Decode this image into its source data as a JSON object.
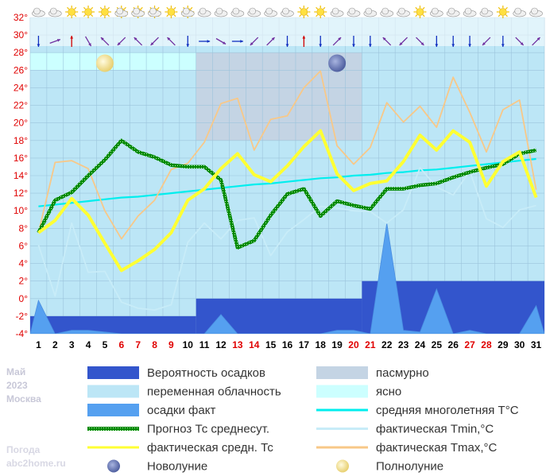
{
  "chart_data": {
    "type": "line",
    "x": [
      1,
      2,
      3,
      4,
      5,
      6,
      7,
      8,
      9,
      10,
      11,
      12,
      13,
      14,
      15,
      16,
      17,
      18,
      19,
      20,
      21,
      22,
      23,
      24,
      25,
      26,
      27,
      28,
      29,
      30,
      31
    ],
    "red_days": [
      6,
      7,
      8,
      9,
      13,
      14,
      20,
      21,
      27,
      28
    ],
    "ylim": [
      -4,
      32
    ],
    "yticks": [
      "-4°",
      "-2°",
      "0°",
      "2°",
      "4°",
      "6°",
      "8°",
      "10°",
      "12°",
      "14°",
      "16°",
      "18°",
      "20°",
      "22°",
      "24°",
      "26°",
      "28°",
      "30°",
      "32°"
    ],
    "ytick_values": [
      -4,
      -2,
      0,
      2,
      4,
      6,
      8,
      10,
      12,
      14,
      16,
      18,
      20,
      22,
      24,
      26,
      28,
      30,
      32
    ],
    "grid": true,
    "side_text": [
      "Май",
      "2023",
      "Москва"
    ],
    "watermark": [
      "Погода",
      "abc2home.ru"
    ],
    "precip_probability": {
      "name": "Вероятность осадков",
      "color": "#3355cc",
      "segments": [
        {
          "from_day": 1,
          "to_day": 10,
          "top": -2
        },
        {
          "from_day": 11,
          "to_day": 20,
          "top": 0
        },
        {
          "from_day": 21,
          "to_day": 31,
          "top": 2
        }
      ]
    },
    "cloud_bands": [
      {
        "name": "пасмурно",
        "color": "#c4d4e4",
        "from_day": 11,
        "to_day": 20,
        "bottom": 18,
        "top": 28
      },
      {
        "name": "ясно",
        "color": "#ccffff",
        "from_day": 1,
        "to_day": 10,
        "bottom": 26,
        "top": 28
      }
    ],
    "series": [
      {
        "name": "средняя многолетняя T°C",
        "color": "#00eeee",
        "values": [
          10.5,
          10.7,
          10.9,
          11.1,
          11.3,
          11.5,
          11.6,
          11.8,
          12.0,
          12.2,
          12.4,
          12.6,
          12.8,
          13.0,
          13.1,
          13.3,
          13.5,
          13.7,
          13.8,
          14.0,
          14.1,
          14.3,
          14.4,
          14.6,
          14.7,
          14.9,
          15.1,
          15.3,
          15.5,
          15.7,
          15.9
        ]
      },
      {
        "name": "фактическая Tmin,°C",
        "color": "#c8ecf8",
        "values": [
          6.1,
          0.3,
          8.6,
          3.0,
          3.1,
          -0.4,
          -1.1,
          -1.3,
          -0.7,
          6.4,
          8.6,
          6.8,
          8.9,
          9.2,
          4.9,
          7.6,
          9.0,
          10.5,
          10.3,
          10.0,
          9.9,
          8.6,
          10.1,
          14.9,
          12.7,
          11.8,
          14.5,
          9.1,
          8.1,
          10.1,
          10.6
        ]
      },
      {
        "name": "фактическая Tmax,°C",
        "color": "#f8c888",
        "values": [
          7.5,
          15.5,
          15.7,
          14.8,
          10.0,
          6.8,
          9.4,
          11.2,
          14.7,
          15.4,
          17.8,
          22.2,
          22.8,
          16.9,
          20.4,
          20.8,
          24.0,
          25.9,
          17.4,
          15.3,
          17.2,
          22.3,
          20.1,
          21.9,
          19.5,
          25.2,
          21.2,
          16.7,
          21.5,
          22.6,
          12.4
        ]
      },
      {
        "name": "Прогноз Тс среднесут.",
        "color": "#008800",
        "values": [
          7.5,
          11.2,
          12.1,
          14.0,
          15.8,
          18.0,
          16.7,
          16.1,
          15.2,
          15.0,
          15.0,
          13.5,
          5.8,
          6.6,
          9.5,
          11.9,
          12.5,
          9.4,
          11.1,
          10.6,
          10.2,
          12.5,
          12.5,
          12.9,
          13.1,
          13.8,
          14.4,
          14.9,
          15.3,
          16.5,
          16.9
        ]
      },
      {
        "name": "фактическая средн. Тс",
        "color": "#ffff33",
        "values": [
          7.5,
          8.9,
          11.4,
          9.5,
          6.3,
          3.2,
          4.3,
          5.6,
          7.5,
          11.2,
          12.5,
          14.8,
          16.5,
          14.1,
          13.3,
          15.1,
          17.3,
          19.1,
          14.2,
          12.3,
          13.1,
          13.4,
          15.6,
          18.6,
          16.9,
          19.1,
          17.8,
          12.8,
          15.6,
          16.7,
          11.5
        ]
      }
    ],
    "precip_fact": {
      "name": "осадки факт",
      "color": "#55a0f0",
      "values": [
        -0.2,
        -4,
        -3.6,
        -3.6,
        -3.8,
        -4,
        -4,
        -4,
        -4,
        -4,
        -4,
        -1.8,
        -4,
        -4,
        -4,
        -4,
        -4,
        -4,
        -3.6,
        -3.6,
        -4,
        8.6,
        -3.6,
        -3.8,
        1.1,
        -4,
        -3.6,
        -4,
        -4,
        -4,
        -0.8
      ]
    },
    "moon_phases": [
      {
        "name": "Полнолуние",
        "day": 5,
        "value": 26.8
      },
      {
        "name": "Новолуние",
        "day": 19,
        "value": 26.8
      }
    ],
    "weather_icons": [
      "cloudy",
      "cloudy",
      "sunny",
      "sunny",
      "sunny",
      "partly-cloudy",
      "partly-cloudy",
      "partly-cloudy",
      "sunny",
      "partly-cloudy",
      "cloudy",
      "cloudy",
      "cloudy",
      "cloudy",
      "cloudy",
      "cloudy",
      "sunny",
      "sunny",
      "cloudy",
      "cloudy",
      "cloudy",
      "cloudy",
      "cloudy",
      "sunny",
      "cloudy",
      "cloudy",
      "cloudy",
      "cloudy",
      "sunny",
      "cloudy",
      "cloudy"
    ],
    "wind_directions_deg": [
      180,
      70,
      0,
      150,
      315,
      225,
      315,
      225,
      315,
      180,
      90,
      120,
      90,
      225,
      45,
      180,
      0,
      180,
      45,
      180,
      180,
      315,
      225,
      135,
      180,
      180,
      180,
      225,
      180,
      135,
      45
    ],
    "legend": [
      {
        "label": "Вероятность осадков",
        "kind": "box",
        "color": "#3355cc"
      },
      {
        "label": "пасмурно",
        "kind": "box",
        "color": "#c4d4e4"
      },
      {
        "label": "переменная облачность",
        "kind": "box",
        "color": "#bce6f6"
      },
      {
        "label": "ясно",
        "kind": "box",
        "color": "#ccffff"
      },
      {
        "label": "осадки факт",
        "kind": "box",
        "color": "#55a0f0"
      },
      {
        "label": "средняя многолетняя T°C",
        "kind": "line",
        "color": "#00eeee"
      },
      {
        "label": "Прогноз Тс среднесут.",
        "kind": "dotted",
        "color": "#008800"
      },
      {
        "label": "фактическая Tmin,°C",
        "kind": "line",
        "color": "#c8ecf8"
      },
      {
        "label": "фактическая средн. Тс",
        "kind": "line",
        "color": "#ffff33"
      },
      {
        "label": "фактическая Tmax,°C",
        "kind": "line",
        "color": "#f8c888"
      },
      {
        "label": "Новолуние",
        "kind": "newmoon",
        "color": "#7080b8"
      },
      {
        "label": "Полнолуние",
        "kind": "fullmoon",
        "color": "#f0e080"
      }
    ],
    "colors": {
      "partly_cloudy_bg": "#bce6f6",
      "grid": "#9cc4dc",
      "ytick": "#e00000",
      "red_day": "#e00000"
    }
  }
}
